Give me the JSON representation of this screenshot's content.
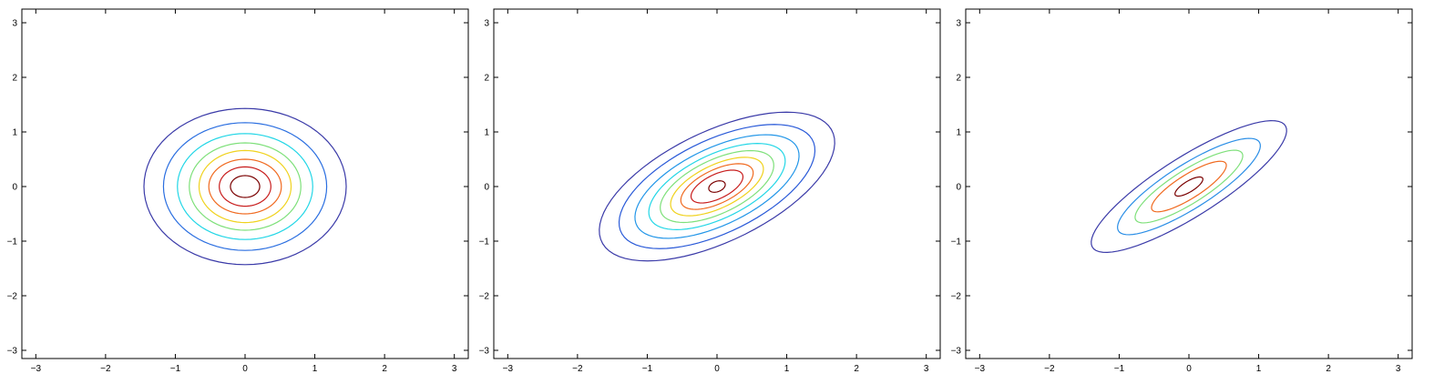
{
  "chart_data": [
    {
      "type": "contour",
      "title": "",
      "xlabel": "",
      "ylabel": "",
      "xlim": [
        -3.2,
        3.2
      ],
      "ylim": [
        -3.15,
        3.25
      ],
      "xticks": [
        -3,
        -2,
        -1,
        0,
        1,
        2,
        3
      ],
      "yticks": [
        -3,
        -2,
        -1,
        0,
        1,
        2,
        3
      ],
      "grid": false,
      "distribution": {
        "mean": [
          0,
          0
        ],
        "sigma_x": 0.5,
        "sigma_y": 0.5,
        "correlation": 0.0
      },
      "contours": [
        {
          "level": 0.05,
          "color": "#3a3aa8",
          "rx": 1.45,
          "ry": 1.43,
          "angle_deg": 0
        },
        {
          "level": 0.2,
          "color": "#2a6ee0",
          "rx": 1.17,
          "ry": 1.17,
          "angle_deg": 0
        },
        {
          "level": 0.35,
          "color": "#22d6e6",
          "rx": 0.97,
          "ry": 0.97,
          "angle_deg": 0
        },
        {
          "level": 0.5,
          "color": "#7ee07a",
          "rx": 0.8,
          "ry": 0.8,
          "angle_deg": 0
        },
        {
          "level": 0.65,
          "color": "#f0d21e",
          "rx": 0.66,
          "ry": 0.66,
          "angle_deg": 0
        },
        {
          "level": 0.8,
          "color": "#f06a20",
          "rx": 0.52,
          "ry": 0.5,
          "angle_deg": 0
        },
        {
          "level": 0.95,
          "color": "#c81e1e",
          "rx": 0.37,
          "ry": 0.36,
          "angle_deg": 0
        },
        {
          "level": 1.1,
          "color": "#7a0000",
          "rx": 0.21,
          "ry": 0.2,
          "angle_deg": 0
        }
      ]
    },
    {
      "type": "contour",
      "title": "",
      "xlabel": "",
      "ylabel": "",
      "xlim": [
        -3.2,
        3.2
      ],
      "ylim": [
        -3.15,
        3.25
      ],
      "xticks": [
        -3,
        -2,
        -1,
        0,
        1,
        2,
        3
      ],
      "yticks": [
        -3,
        -2,
        -1,
        0,
        1,
        2,
        3
      ],
      "grid": false,
      "distribution": {
        "mean": [
          0,
          0
        ],
        "sigma_x": 0.5,
        "sigma_y": 0.5,
        "correlation": 0.5
      },
      "contours": [
        {
          "level": 0.05,
          "color": "#3a3aa8",
          "rx": 1.95,
          "ry": 0.95,
          "angle_deg": 35
        },
        {
          "level": 0.2,
          "color": "#2a5ad8",
          "rx": 1.62,
          "ry": 0.8,
          "angle_deg": 35
        },
        {
          "level": 0.35,
          "color": "#2296e8",
          "rx": 1.36,
          "ry": 0.66,
          "angle_deg": 35
        },
        {
          "level": 0.5,
          "color": "#22d6e6",
          "rx": 1.13,
          "ry": 0.55,
          "angle_deg": 35
        },
        {
          "level": 0.65,
          "color": "#7ee07a",
          "rx": 0.94,
          "ry": 0.46,
          "angle_deg": 35
        },
        {
          "level": 0.8,
          "color": "#f0d21e",
          "rx": 0.77,
          "ry": 0.37,
          "angle_deg": 35
        },
        {
          "level": 0.95,
          "color": "#f06a20",
          "rx": 0.6,
          "ry": 0.29,
          "angle_deg": 35
        },
        {
          "level": 1.1,
          "color": "#c81e1e",
          "rx": 0.43,
          "ry": 0.21,
          "angle_deg": 35
        },
        {
          "level": 1.25,
          "color": "#7a0000",
          "rx": 0.13,
          "ry": 0.09,
          "angle_deg": 35
        }
      ]
    },
    {
      "type": "contour",
      "title": "",
      "xlabel": "",
      "ylabel": "",
      "xlim": [
        -3.2,
        3.2
      ],
      "ylim": [
        -3.15,
        3.25
      ],
      "xticks": [
        -3,
        -2,
        -1,
        0,
        1,
        2,
        3
      ],
      "yticks": [
        -3,
        -2,
        -1,
        0,
        1,
        2,
        3
      ],
      "grid": false,
      "distribution": {
        "mean": [
          0,
          0
        ],
        "sigma_x": 0.5,
        "sigma_y": 0.5,
        "correlation": 0.8
      },
      "contours": [
        {
          "level": 0.05,
          "color": "#3a3aa8",
          "rx": 1.78,
          "ry": 0.5,
          "angle_deg": 40
        },
        {
          "level": 0.3,
          "color": "#2a8ee6",
          "rx": 1.3,
          "ry": 0.37,
          "angle_deg": 40
        },
        {
          "level": 0.55,
          "color": "#7ee07a",
          "rx": 0.98,
          "ry": 0.28,
          "angle_deg": 40
        },
        {
          "level": 0.8,
          "color": "#f06a20",
          "rx": 0.68,
          "ry": 0.2,
          "angle_deg": 40
        },
        {
          "level": 1.05,
          "color": "#7a0000",
          "rx": 0.25,
          "ry": 0.09,
          "angle_deg": 40
        }
      ]
    }
  ]
}
